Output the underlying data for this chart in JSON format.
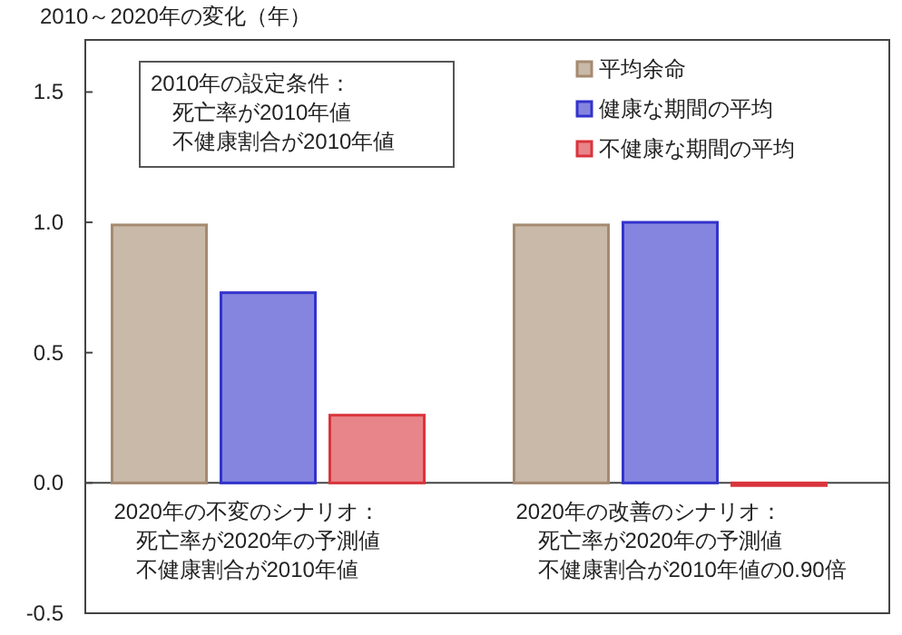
{
  "chart_data": {
    "type": "bar",
    "title": "2010～2020年の変化（年）",
    "categories": [
      null,
      null
    ],
    "series": [
      {
        "name": "平均余命",
        "color": "#a58a70",
        "values": [
          0.99,
          0.99
        ]
      },
      {
        "name": "健康な期間の平均",
        "color": "#3333cc",
        "values": [
          0.73,
          1.0
        ]
      },
      {
        "name": "不健康な期間の平均",
        "color": "#d9343c",
        "values": [
          0.26,
          -0.01
        ]
      }
    ],
    "ylim": [
      -0.5,
      1.7
    ],
    "yticks": [
      {
        "value": -0.5,
        "label": "-0.5"
      },
      {
        "value": 0,
        "label": "0.0"
      },
      {
        "value": 0.5,
        "label": "0.5"
      },
      {
        "value": 1,
        "label": "1.0"
      },
      {
        "value": 1.5,
        "label": "1.5"
      }
    ],
    "annotations": [
      "2010年の設定条件：",
      "死亡率が2010年値",
      "不健康割合が2010年値",
      "2020年の不変のシナリオ：",
      "死亡率が2020年の予測値",
      "不健康割合が2010年値",
      "2020年の改善のシナリオ：",
      "死亡率が2020年の予測値",
      "不健康割合が2010年値の0.90倍"
    ],
    "legend": "top right"
  }
}
